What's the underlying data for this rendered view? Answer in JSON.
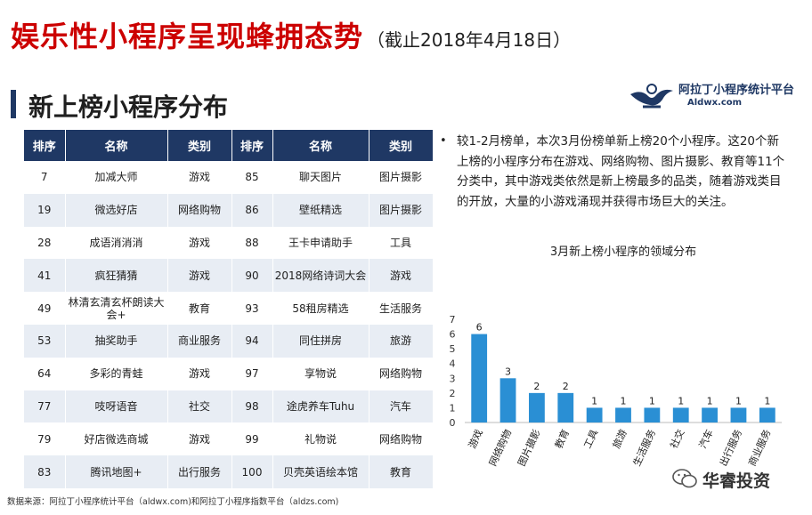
{
  "header": {
    "title": "娱乐性小程序呈现蜂拥态势",
    "date_note": "（截止2018年4月18日）"
  },
  "section": {
    "title": "新上榜小程序分布"
  },
  "brand": {
    "name": "阿拉丁小程序统计平台",
    "url": "Aldwx.com"
  },
  "table": {
    "headers": [
      "排序",
      "名称",
      "类别",
      "排序",
      "名称",
      "类别"
    ],
    "rows": [
      [
        "7",
        "加减大师",
        "游戏",
        "85",
        "聊天图片",
        "图片摄影"
      ],
      [
        "19",
        "微选好店",
        "网络购物",
        "86",
        "壁纸精选",
        "图片摄影"
      ],
      [
        "28",
        "成语消消消",
        "游戏",
        "88",
        "王卡申请助手",
        "工具"
      ],
      [
        "41",
        "疯狂猜猜",
        "游戏",
        "90",
        "2018网络诗词大会",
        "游戏"
      ],
      [
        "49",
        "林清玄清玄杯朗读大会+",
        "教育",
        "93",
        "58租房精选",
        "生活服务"
      ],
      [
        "53",
        "抽奖助手",
        "商业服务",
        "94",
        "同住拼房",
        "旅游"
      ],
      [
        "64",
        "多彩的青蛙",
        "游戏",
        "97",
        "享物说",
        "网络购物"
      ],
      [
        "77",
        "吱呀语音",
        "社交",
        "98",
        "途虎养车Tuhu",
        "汽车"
      ],
      [
        "79",
        "好店微选商城",
        "游戏",
        "99",
        "礼物说",
        "网络购物"
      ],
      [
        "83",
        "腾讯地图+",
        "出行服务",
        "100",
        "贝壳英语绘本馆",
        "教育"
      ]
    ]
  },
  "summary": {
    "bullet": "•",
    "text": "较1-2月榜单，本次3月份榜单新上榜20个小程序。这20个新上榜的小程序分布在游戏、网络购物、图片摄影、教育等11个分类中，其中游戏类依然是新上榜最多的品类，随着游戏类目的开放，大量的小游戏涌现并获得市场巨大的关注。"
  },
  "chart_data": {
    "type": "bar",
    "title": "3月新上榜小程序的领域分布",
    "categories": [
      "游戏",
      "网络购物",
      "图片摄影",
      "教育",
      "工具",
      "旅游",
      "生活服务",
      "社交",
      "汽车",
      "出行服务",
      "商业服务"
    ],
    "values": [
      6,
      3,
      2,
      2,
      1,
      1,
      1,
      1,
      1,
      1,
      1
    ],
    "ylim": [
      0,
      7
    ],
    "yticks": [
      0,
      1,
      2,
      3,
      4,
      5,
      6,
      7
    ],
    "xlabel": "",
    "ylabel": "",
    "color": "#2a8fd4"
  },
  "footer": {
    "source": "数据来源：阿拉丁小程序统计平台（aldwx.com)和阿拉丁小程序指数平台（aldzs.com)"
  },
  "watermark": {
    "text": "华睿投资"
  }
}
